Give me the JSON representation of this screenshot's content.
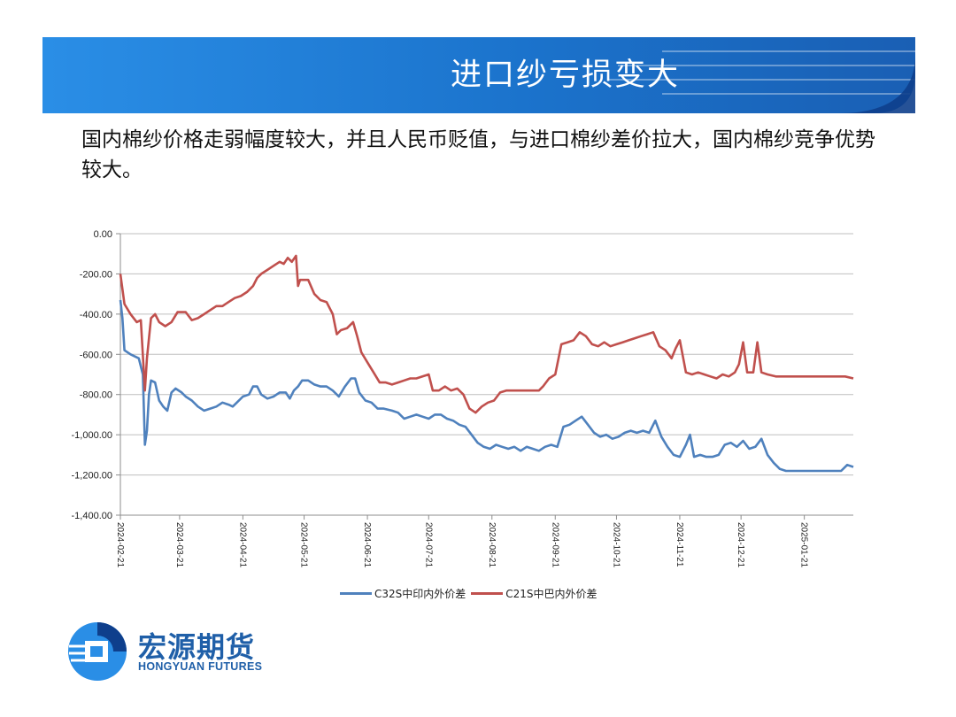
{
  "header": {
    "title": "进口纱亏损变大",
    "banner_color": "#1b73cc",
    "banner_accent": "#0e3f8c"
  },
  "subtitle": "国内棉纱价格走弱幅度较大，并且人民币贬值，与进口棉纱差价拉大，国内棉纱竞争优势较大。",
  "logo": {
    "name_cn": "宏源期货",
    "name_en": "HONGYUAN FUTURES",
    "color": "#1f5fa8"
  },
  "chart_data": {
    "type": "line",
    "ylim": [
      -1400,
      0
    ],
    "yticks": [
      0,
      -200,
      -400,
      -600,
      -800,
      -1000,
      -1200,
      -1400
    ],
    "ytick_labels": [
      "0.00",
      "-200.00",
      "-400.00",
      "-600.00",
      "-800.00",
      "-1,000.00",
      "-1,200.00",
      "-1,400.00"
    ],
    "xlim": [
      "2024-02-21",
      "2025-02-14"
    ],
    "xtick_labels": [
      "2024-02-21",
      "2024-03-21",
      "2024-04-21",
      "2024-05-21",
      "2024-06-21",
      "2024-07-21",
      "2024-08-21",
      "2024-09-21",
      "2024-10-21",
      "2024-11-21",
      "2024-12-21",
      "2025-01-21"
    ],
    "grid": "horizontal",
    "legend": "bottom",
    "series": [
      {
        "name": "C32S中印内外价差",
        "color": "#4f81bd",
        "points": [
          [
            "2024-02-21",
            -330
          ],
          [
            "2024-02-22",
            -420
          ],
          [
            "2024-02-23",
            -580
          ],
          [
            "2024-02-26",
            -600
          ],
          [
            "2024-03-01",
            -620
          ],
          [
            "2024-03-03",
            -700
          ],
          [
            "2024-03-04",
            -1050
          ],
          [
            "2024-03-05",
            -980
          ],
          [
            "2024-03-06",
            -800
          ],
          [
            "2024-03-07",
            -730
          ],
          [
            "2024-03-09",
            -740
          ],
          [
            "2024-03-11",
            -830
          ],
          [
            "2024-03-13",
            -860
          ],
          [
            "2024-03-15",
            -880
          ],
          [
            "2024-03-17",
            -790
          ],
          [
            "2024-03-19",
            -770
          ],
          [
            "2024-03-22",
            -790
          ],
          [
            "2024-03-24",
            -810
          ],
          [
            "2024-03-27",
            -830
          ],
          [
            "2024-03-30",
            -860
          ],
          [
            "2024-04-02",
            -880
          ],
          [
            "2024-04-05",
            -870
          ],
          [
            "2024-04-08",
            -860
          ],
          [
            "2024-04-11",
            -840
          ],
          [
            "2024-04-14",
            -850
          ],
          [
            "2024-04-16",
            -860
          ],
          [
            "2024-04-18",
            -840
          ],
          [
            "2024-04-21",
            -810
          ],
          [
            "2024-04-24",
            -800
          ],
          [
            "2024-04-26",
            -760
          ],
          [
            "2024-04-28",
            -760
          ],
          [
            "2024-04-30",
            -800
          ],
          [
            "2024-05-03",
            -820
          ],
          [
            "2024-05-06",
            -810
          ],
          [
            "2024-05-09",
            -790
          ],
          [
            "2024-05-12",
            -790
          ],
          [
            "2024-05-14",
            -820
          ],
          [
            "2024-05-16",
            -780
          ],
          [
            "2024-05-18",
            -760
          ],
          [
            "2024-05-20",
            -730
          ],
          [
            "2024-05-23",
            -730
          ],
          [
            "2024-05-26",
            -750
          ],
          [
            "2024-05-29",
            -760
          ],
          [
            "2024-06-01",
            -760
          ],
          [
            "2024-06-04",
            -780
          ],
          [
            "2024-06-07",
            -810
          ],
          [
            "2024-06-10",
            -760
          ],
          [
            "2024-06-13",
            -720
          ],
          [
            "2024-06-15",
            -720
          ],
          [
            "2024-06-17",
            -790
          ],
          [
            "2024-06-20",
            -830
          ],
          [
            "2024-06-23",
            -840
          ],
          [
            "2024-06-26",
            -870
          ],
          [
            "2024-06-29",
            -870
          ],
          [
            "2024-07-03",
            -880
          ],
          [
            "2024-07-06",
            -890
          ],
          [
            "2024-07-09",
            -920
          ],
          [
            "2024-07-12",
            -910
          ],
          [
            "2024-07-15",
            -900
          ],
          [
            "2024-07-18",
            -910
          ],
          [
            "2024-07-21",
            -920
          ],
          [
            "2024-07-24",
            -900
          ],
          [
            "2024-07-27",
            -900
          ],
          [
            "2024-07-30",
            -920
          ],
          [
            "2024-08-02",
            -930
          ],
          [
            "2024-08-05",
            -950
          ],
          [
            "2024-08-08",
            -960
          ],
          [
            "2024-08-11",
            -1000
          ],
          [
            "2024-08-14",
            -1040
          ],
          [
            "2024-08-17",
            -1060
          ],
          [
            "2024-08-20",
            -1070
          ],
          [
            "2024-08-23",
            -1050
          ],
          [
            "2024-08-26",
            -1060
          ],
          [
            "2024-08-29",
            -1070
          ],
          [
            "2024-09-01",
            -1060
          ],
          [
            "2024-09-04",
            -1080
          ],
          [
            "2024-09-07",
            -1060
          ],
          [
            "2024-09-10",
            -1070
          ],
          [
            "2024-09-13",
            -1080
          ],
          [
            "2024-09-16",
            -1060
          ],
          [
            "2024-09-19",
            -1050
          ],
          [
            "2024-09-22",
            -1060
          ],
          [
            "2024-09-25",
            -960
          ],
          [
            "2024-09-28",
            -950
          ],
          [
            "2024-10-01",
            -930
          ],
          [
            "2024-10-04",
            -910
          ],
          [
            "2024-10-07",
            -950
          ],
          [
            "2024-10-10",
            -990
          ],
          [
            "2024-10-13",
            -1010
          ],
          [
            "2024-10-16",
            -1000
          ],
          [
            "2024-10-19",
            -1020
          ],
          [
            "2024-10-22",
            -1010
          ],
          [
            "2024-10-25",
            -990
          ],
          [
            "2024-10-28",
            -980
          ],
          [
            "2024-10-31",
            -990
          ],
          [
            "2024-11-03",
            -980
          ],
          [
            "2024-11-06",
            -990
          ],
          [
            "2024-11-09",
            -930
          ],
          [
            "2024-11-12",
            -1010
          ],
          [
            "2024-11-15",
            -1060
          ],
          [
            "2024-11-18",
            -1100
          ],
          [
            "2024-11-21",
            -1110
          ],
          [
            "2024-11-24",
            -1050
          ],
          [
            "2024-11-26",
            -1000
          ],
          [
            "2024-11-28",
            -1110
          ],
          [
            "2024-12-01",
            -1100
          ],
          [
            "2024-12-04",
            -1110
          ],
          [
            "2024-12-07",
            -1110
          ],
          [
            "2024-12-10",
            -1100
          ],
          [
            "2024-12-13",
            -1050
          ],
          [
            "2024-12-16",
            -1040
          ],
          [
            "2024-12-19",
            -1060
          ],
          [
            "2024-12-22",
            -1030
          ],
          [
            "2024-12-25",
            -1070
          ],
          [
            "2024-12-28",
            -1060
          ],
          [
            "2024-12-31",
            -1020
          ],
          [
            "2025-01-03",
            -1100
          ],
          [
            "2025-01-06",
            -1140
          ],
          [
            "2025-01-09",
            -1170
          ],
          [
            "2025-01-12",
            -1180
          ],
          [
            "2025-01-16",
            -1180
          ],
          [
            "2025-01-21",
            -1180
          ],
          [
            "2025-01-27",
            -1180
          ],
          [
            "2025-02-03",
            -1180
          ],
          [
            "2025-02-08",
            -1180
          ],
          [
            "2025-02-11",
            -1150
          ],
          [
            "2025-02-14",
            -1160
          ]
        ]
      },
      {
        "name": "C21S中巴内外价差",
        "color": "#c0504d",
        "points": [
          [
            "2024-02-21",
            -200
          ],
          [
            "2024-02-23",
            -350
          ],
          [
            "2024-02-26",
            -400
          ],
          [
            "2024-02-29",
            -440
          ],
          [
            "2024-03-02",
            -430
          ],
          [
            "2024-03-04",
            -780
          ],
          [
            "2024-03-05",
            -620
          ],
          [
            "2024-03-07",
            -420
          ],
          [
            "2024-03-09",
            -400
          ],
          [
            "2024-03-11",
            -440
          ],
          [
            "2024-03-14",
            -460
          ],
          [
            "2024-03-17",
            -440
          ],
          [
            "2024-03-20",
            -390
          ],
          [
            "2024-03-24",
            -390
          ],
          [
            "2024-03-27",
            -430
          ],
          [
            "2024-03-30",
            -420
          ],
          [
            "2024-04-02",
            -400
          ],
          [
            "2024-04-05",
            -380
          ],
          [
            "2024-04-08",
            -360
          ],
          [
            "2024-04-11",
            -360
          ],
          [
            "2024-04-14",
            -340
          ],
          [
            "2024-04-17",
            -320
          ],
          [
            "2024-04-20",
            -310
          ],
          [
            "2024-04-23",
            -290
          ],
          [
            "2024-04-26",
            -260
          ],
          [
            "2024-04-28",
            -220
          ],
          [
            "2024-04-30",
            -200
          ],
          [
            "2024-05-03",
            -180
          ],
          [
            "2024-05-06",
            -160
          ],
          [
            "2024-05-09",
            -140
          ],
          [
            "2024-05-11",
            -150
          ],
          [
            "2024-05-13",
            -120
          ],
          [
            "2024-05-15",
            -140
          ],
          [
            "2024-05-17",
            -110
          ],
          [
            "2024-05-18",
            -260
          ],
          [
            "2024-05-19",
            -230
          ],
          [
            "2024-05-23",
            -230
          ],
          [
            "2024-05-26",
            -300
          ],
          [
            "2024-05-29",
            -330
          ],
          [
            "2024-06-01",
            -340
          ],
          [
            "2024-06-04",
            -400
          ],
          [
            "2024-06-06",
            -500
          ],
          [
            "2024-06-08",
            -480
          ],
          [
            "2024-06-11",
            -470
          ],
          [
            "2024-06-14",
            -440
          ],
          [
            "2024-06-16",
            -510
          ],
          [
            "2024-06-18",
            -590
          ],
          [
            "2024-06-21",
            -640
          ],
          [
            "2024-06-24",
            -690
          ],
          [
            "2024-06-27",
            -740
          ],
          [
            "2024-06-30",
            -740
          ],
          [
            "2024-07-03",
            -750
          ],
          [
            "2024-07-06",
            -740
          ],
          [
            "2024-07-09",
            -730
          ],
          [
            "2024-07-12",
            -720
          ],
          [
            "2024-07-15",
            -720
          ],
          [
            "2024-07-18",
            -710
          ],
          [
            "2024-07-21",
            -700
          ],
          [
            "2024-07-23",
            -780
          ],
          [
            "2024-07-26",
            -780
          ],
          [
            "2024-07-29",
            -760
          ],
          [
            "2024-08-01",
            -780
          ],
          [
            "2024-08-04",
            -770
          ],
          [
            "2024-08-07",
            -800
          ],
          [
            "2024-08-10",
            -870
          ],
          [
            "2024-08-13",
            -890
          ],
          [
            "2024-08-16",
            -860
          ],
          [
            "2024-08-19",
            -840
          ],
          [
            "2024-08-22",
            -830
          ],
          [
            "2024-08-25",
            -790
          ],
          [
            "2024-08-28",
            -780
          ],
          [
            "2024-09-01",
            -780
          ],
          [
            "2024-09-05",
            -780
          ],
          [
            "2024-09-09",
            -780
          ],
          [
            "2024-09-13",
            -780
          ],
          [
            "2024-09-15",
            -760
          ],
          [
            "2024-09-18",
            -720
          ],
          [
            "2024-09-21",
            -700
          ],
          [
            "2024-09-24",
            -550
          ],
          [
            "2024-09-27",
            -540
          ],
          [
            "2024-09-30",
            -530
          ],
          [
            "2024-10-03",
            -490
          ],
          [
            "2024-10-06",
            -510
          ],
          [
            "2024-10-09",
            -550
          ],
          [
            "2024-10-12",
            -560
          ],
          [
            "2024-10-15",
            -540
          ],
          [
            "2024-10-18",
            -560
          ],
          [
            "2024-10-21",
            -550
          ],
          [
            "2024-10-24",
            -540
          ],
          [
            "2024-10-27",
            -530
          ],
          [
            "2024-10-30",
            -520
          ],
          [
            "2024-11-02",
            -510
          ],
          [
            "2024-11-05",
            -500
          ],
          [
            "2024-11-08",
            -490
          ],
          [
            "2024-11-11",
            -560
          ],
          [
            "2024-11-14",
            -580
          ],
          [
            "2024-11-17",
            -620
          ],
          [
            "2024-11-19",
            -570
          ],
          [
            "2024-11-21",
            -530
          ],
          [
            "2024-11-24",
            -690
          ],
          [
            "2024-11-27",
            -700
          ],
          [
            "2024-11-30",
            -690
          ],
          [
            "2024-12-03",
            -700
          ],
          [
            "2024-12-06",
            -710
          ],
          [
            "2024-12-09",
            -720
          ],
          [
            "2024-12-12",
            -700
          ],
          [
            "2024-12-15",
            -710
          ],
          [
            "2024-12-18",
            -690
          ],
          [
            "2024-12-20",
            -650
          ],
          [
            "2024-12-22",
            -540
          ],
          [
            "2024-12-24",
            -690
          ],
          [
            "2024-12-27",
            -690
          ],
          [
            "2024-12-29",
            -540
          ],
          [
            "2024-12-31",
            -690
          ],
          [
            "2025-01-03",
            -700
          ],
          [
            "2025-01-07",
            -710
          ],
          [
            "2025-01-12",
            -710
          ],
          [
            "2025-01-18",
            -710
          ],
          [
            "2025-01-24",
            -710
          ],
          [
            "2025-01-30",
            -710
          ],
          [
            "2025-02-05",
            -710
          ],
          [
            "2025-02-10",
            -710
          ],
          [
            "2025-02-14",
            -720
          ]
        ]
      }
    ]
  }
}
